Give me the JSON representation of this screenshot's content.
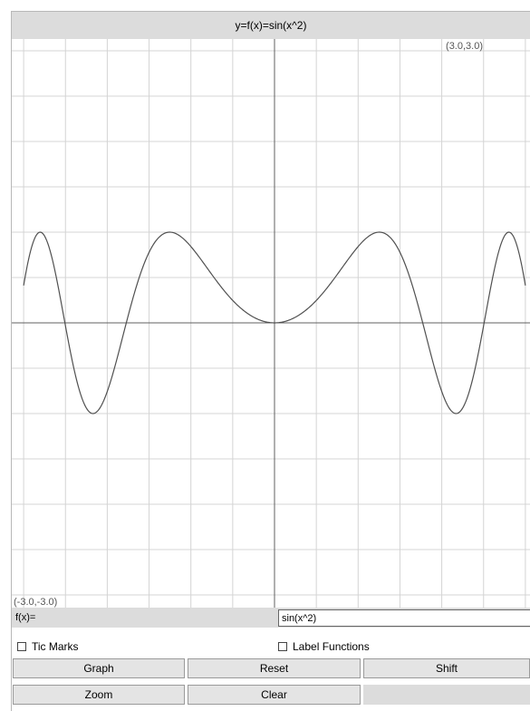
{
  "title": "y=f(x)=sin(x^2)",
  "corners": {
    "top_right": "(3.0,3.0)",
    "bottom_left": "(-3.0,-3.0)"
  },
  "formula": {
    "label": "f(x)=",
    "value": "sin(x^2)"
  },
  "checkboxes": {
    "tic_marks": {
      "label": "Tic Marks",
      "checked": false
    },
    "label_functions": {
      "label": "Label Functions",
      "checked": false
    }
  },
  "buttons": {
    "graph": "Graph",
    "reset": "Reset",
    "shift": "Shift",
    "zoom": "Zoom",
    "clear": "Clear"
  },
  "colors": {
    "panel_bg": "#dcdcdc",
    "grid": "#d4d4d4",
    "axis": "#606060",
    "curve": "#505050"
  },
  "chart_data": {
    "type": "line",
    "function": "sin(x^2)",
    "xlim": [
      -3.0,
      3.0
    ],
    "ylim": [
      -3.0,
      3.0
    ],
    "grid": true,
    "grid_step": 0.5,
    "series": [
      {
        "x": [
          -3.0,
          -2.9,
          -2.8,
          -2.7,
          -2.6,
          -2.5,
          -2.4,
          -2.3,
          -2.2,
          -2.1,
          -2.0,
          -1.9,
          -1.8,
          -1.7,
          -1.6,
          -1.5,
          -1.4,
          -1.3,
          -1.2,
          -1.1,
          -1.0,
          -0.9,
          -0.8,
          -0.7,
          -0.6,
          -0.5,
          -0.4,
          -0.3,
          -0.2,
          -0.1,
          0.0,
          0.1,
          0.2,
          0.3,
          0.4,
          0.5,
          0.6,
          0.7,
          0.8,
          0.9,
          1.0,
          1.1,
          1.2,
          1.3,
          1.4,
          1.5,
          1.6,
          1.7,
          1.8,
          1.9,
          2.0,
          2.1,
          2.2,
          2.3,
          2.4,
          2.5,
          2.6,
          2.7,
          2.8,
          2.9,
          3.0
        ],
        "y": [
          0.412,
          0.859,
          0.999,
          0.85,
          0.452,
          -0.033,
          -0.497,
          -0.85,
          -0.993,
          -0.954,
          -0.757,
          -0.449,
          -0.098,
          0.249,
          0.549,
          0.778,
          0.925,
          0.994,
          0.991,
          0.935,
          0.841,
          0.725,
          0.597,
          0.468,
          0.352,
          0.247,
          0.159,
          0.09,
          0.04,
          0.01,
          0.0,
          0.01,
          0.04,
          0.09,
          0.159,
          0.247,
          0.352,
          0.468,
          0.597,
          0.725,
          0.841,
          0.935,
          0.991,
          0.994,
          0.925,
          0.778,
          0.549,
          0.249,
          -0.098,
          -0.449,
          -0.757,
          -0.954,
          -0.993,
          -0.85,
          -0.497,
          -0.033,
          0.452,
          0.85,
          0.999,
          0.859,
          0.412
        ]
      }
    ]
  }
}
